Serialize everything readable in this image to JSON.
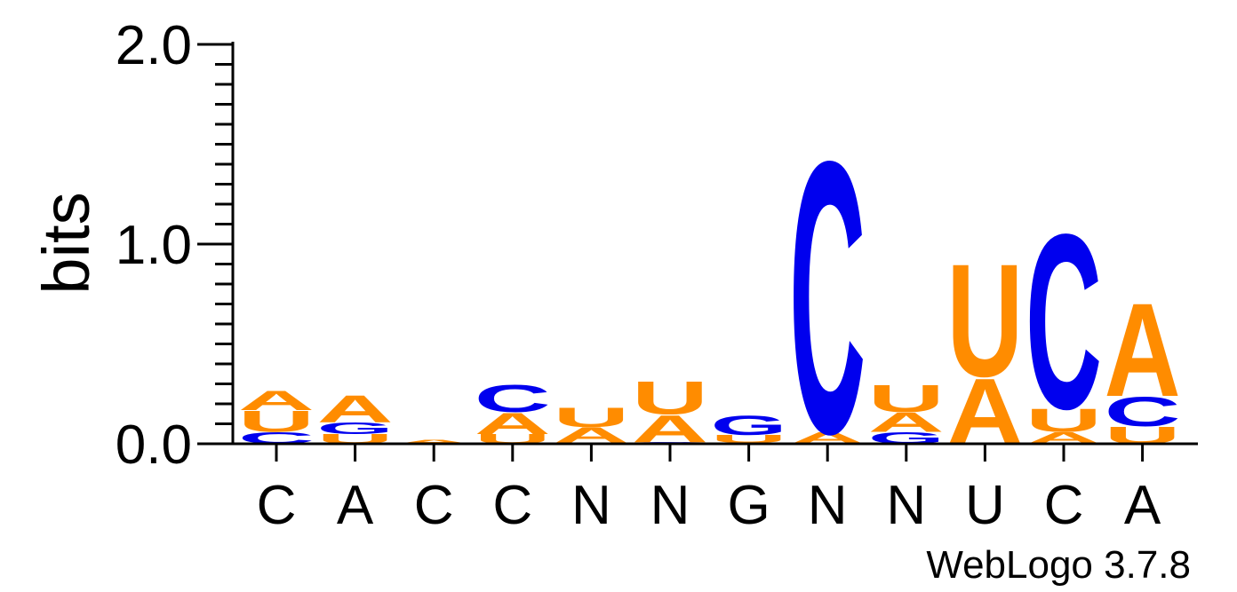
{
  "chart_data": {
    "type": "sequence-logo",
    "ylabel": "bits",
    "ylim": [
      0,
      2.0
    ],
    "yticks": [
      "0.0",
      "1.0",
      "2.0"
    ],
    "colors": {
      "A": "#ff8c00",
      "U": "#ff8c00",
      "C": "#0000ee",
      "G": "#0000ee"
    },
    "positions": [
      {
        "label": "C",
        "stack": [
          {
            "letter": "C",
            "bits": 0.06
          },
          {
            "letter": "U",
            "bits": 0.11
          },
          {
            "letter": "A",
            "bits": 0.1
          }
        ]
      },
      {
        "label": "A",
        "stack": [
          {
            "letter": "U",
            "bits": 0.05
          },
          {
            "letter": "G",
            "bits": 0.06
          },
          {
            "letter": "A",
            "bits": 0.14
          }
        ]
      },
      {
        "label": "C",
        "stack": [
          {
            "letter": "A",
            "bits": 0.02
          }
        ]
      },
      {
        "label": "C",
        "stack": [
          {
            "letter": "U",
            "bits": 0.05
          },
          {
            "letter": "A",
            "bits": 0.11
          },
          {
            "letter": "C",
            "bits": 0.14
          }
        ]
      },
      {
        "label": "N",
        "stack": [
          {
            "letter": "G",
            "bits": 0.005
          },
          {
            "letter": "A",
            "bits": 0.08
          },
          {
            "letter": "U",
            "bits": 0.1
          }
        ]
      },
      {
        "label": "N",
        "stack": [
          {
            "letter": "G",
            "bits": 0.008
          },
          {
            "letter": "A",
            "bits": 0.14
          },
          {
            "letter": "U",
            "bits": 0.17
          }
        ]
      },
      {
        "label": "G",
        "stack": [
          {
            "letter": "A",
            "bits": 0.005
          },
          {
            "letter": "U",
            "bits": 0.04
          },
          {
            "letter": "G",
            "bits": 0.1
          }
        ]
      },
      {
        "label": "N",
        "stack": [
          {
            "letter": "A",
            "bits": 0.06
          },
          {
            "letter": "C",
            "bits": 1.4
          }
        ]
      },
      {
        "label": "N",
        "stack": [
          {
            "letter": "G",
            "bits": 0.06
          },
          {
            "letter": "A",
            "bits": 0.1
          },
          {
            "letter": "U",
            "bits": 0.14
          }
        ]
      },
      {
        "label": "U",
        "stack": [
          {
            "letter": "A",
            "bits": 0.34
          },
          {
            "letter": "U",
            "bits": 0.58
          }
        ]
      },
      {
        "label": "C",
        "stack": [
          {
            "letter": "A",
            "bits": 0.06
          },
          {
            "letter": "U",
            "bits": 0.12
          },
          {
            "letter": "C",
            "bits": 0.9
          }
        ]
      },
      {
        "label": "A",
        "stack": [
          {
            "letter": "U",
            "bits": 0.09
          },
          {
            "letter": "C",
            "bits": 0.15
          },
          {
            "letter": "A",
            "bits": 0.48
          }
        ]
      }
    ]
  },
  "credit": "WebLogo 3.7.8"
}
